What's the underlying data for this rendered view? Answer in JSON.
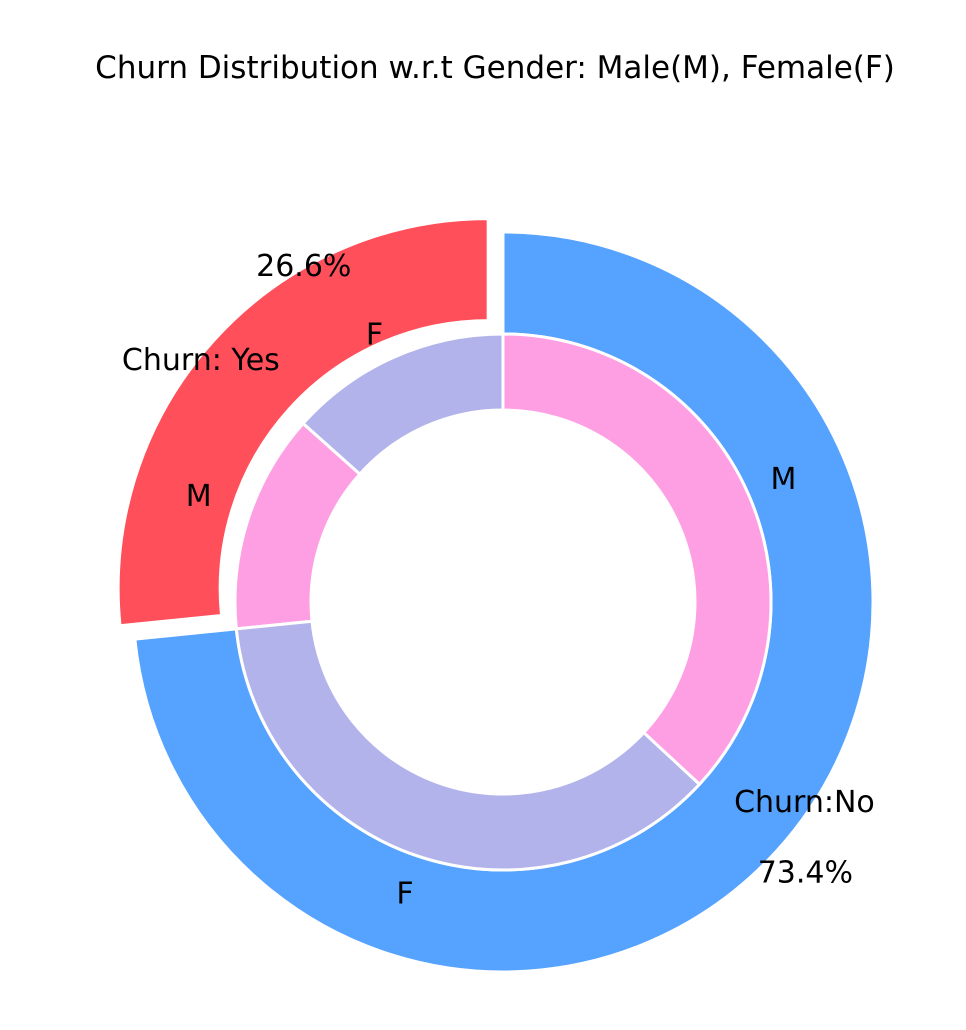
{
  "chart_data": {
    "type": "pie",
    "title": "Churn Distribution w.r.t Gender: Male(M), Female(F)",
    "outer": {
      "labels": [
        "Churn: Yes",
        "Churn:No"
      ],
      "values": [
        26.6,
        73.4
      ],
      "value_labels": [
        "26.6%",
        "73.4%"
      ],
      "colors": [
        "#ff4f5a",
        "#55a2ff"
      ]
    },
    "inner": {
      "groups": [
        "Churn: Yes",
        "Churn: Yes",
        "Churn:No",
        "Churn:No"
      ],
      "labels": [
        "F",
        "M",
        "F",
        "M"
      ],
      "values": [
        13.4,
        13.2,
        36.5,
        36.9
      ],
      "colors": [
        "#b3b3eb",
        "#ff9fe3",
        "#b3b3eb",
        "#ff9fe3"
      ]
    },
    "gender_labels": [
      {
        "text": "F",
        "segment": "Churn: Yes · F"
      },
      {
        "text": "M",
        "segment": "Churn: Yes · M"
      },
      {
        "text": "M",
        "segment": "Churn:No · M"
      },
      {
        "text": "F",
        "segment": "Churn:No · F"
      }
    ]
  }
}
